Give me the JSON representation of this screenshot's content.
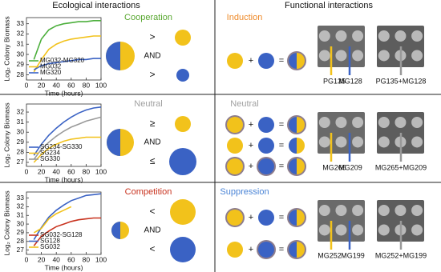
{
  "headers": [
    "Ecological interactions",
    "Functional interactions"
  ],
  "operators": {
    "plus": "+",
    "equals": "="
  },
  "chart_data": [
    {
      "type": "line",
      "y_label": "Log₂ Colony Biomass",
      "x_label": "Time (hours)",
      "x": [
        10,
        20,
        30,
        40,
        50,
        60,
        70,
        80,
        90,
        100
      ],
      "xlim": [
        0,
        100
      ],
      "xticks": [
        0,
        20,
        40,
        60,
        80,
        100
      ],
      "ylim": [
        27.5,
        33.6
      ],
      "yticks": [
        28,
        29,
        30,
        31,
        32,
        33
      ],
      "series": [
        {
          "name": "MG032-MG320",
          "color": "#4caf3c",
          "values": [
            29.5,
            31.5,
            32.4,
            32.8,
            33.0,
            33.1,
            33.2,
            33.2,
            33.3,
            33.3
          ]
        },
        {
          "name": "MG032",
          "color": "#f2c21b",
          "values": [
            28.3,
            29.5,
            30.5,
            31.0,
            31.3,
            31.5,
            31.6,
            31.7,
            31.8,
            31.8
          ]
        },
        {
          "name": "MG320",
          "color": "#3a62c4",
          "values": [
            28.5,
            28.9,
            29.1,
            29.2,
            29.3,
            29.4,
            29.5,
            29.5,
            29.6,
            29.6
          ]
        }
      ]
    },
    {
      "type": "line",
      "y_label": "Log₂ Colony Biomass",
      "x_label": "Time (hours)",
      "x": [
        10,
        20,
        30,
        40,
        50,
        60,
        70,
        80,
        90,
        100
      ],
      "xlim": [
        0,
        100
      ],
      "xticks": [
        0,
        20,
        40,
        60,
        80,
        100
      ],
      "ylim": [
        26.6,
        32.8
      ],
      "yticks": [
        27,
        28,
        29,
        30,
        31,
        32
      ],
      "series": [
        {
          "name": "SG234-SG330",
          "color": "#3a62c4",
          "values": [
            27.7,
            28.8,
            29.7,
            30.4,
            31.0,
            31.5,
            31.9,
            32.2,
            32.4,
            32.5
          ]
        },
        {
          "name": "SG234",
          "color": "#f2c21b",
          "values": [
            27.0,
            27.8,
            28.4,
            28.8,
            29.1,
            29.3,
            29.4,
            29.5,
            29.5,
            29.5
          ]
        },
        {
          "name": "SG330",
          "color": "#9a9a9a",
          "values": [
            27.3,
            28.3,
            29.0,
            29.6,
            30.1,
            30.5,
            30.8,
            31.1,
            31.3,
            31.5
          ]
        }
      ]
    },
    {
      "type": "line",
      "y_label": "Log₂ Colony Biomass",
      "x_label": "Time (hours)",
      "x": [
        10,
        20,
        30,
        40,
        50,
        60,
        70,
        80,
        90,
        100
      ],
      "xlim": [
        0,
        100
      ],
      "xticks": [
        0,
        20,
        40,
        60,
        80,
        100
      ],
      "ylim": [
        26.5,
        33.7
      ],
      "yticks": [
        27,
        28,
        29,
        30,
        31,
        32,
        33
      ],
      "series": [
        {
          "name": "SG032-SG128",
          "color": "#c8321e",
          "values": [
            27.5,
            28.6,
            29.2,
            29.7,
            30.0,
            30.3,
            30.5,
            30.6,
            30.7,
            30.7
          ]
        },
        {
          "name": "SG128",
          "color": "#3a62c4",
          "values": [
            28.2,
            29.6,
            30.8,
            31.6,
            32.2,
            32.7,
            33.0,
            33.3,
            33.4,
            33.5
          ]
        },
        {
          "name": "SG032",
          "color": "#f2c21b",
          "values": [
            29.0,
            29.5,
            30.6,
            31.2,
            31.6,
            32.0,
            null,
            null,
            null,
            null
          ]
        }
      ]
    }
  ],
  "rows": [
    {
      "ecological_title": "Cooperation",
      "ecological_color": "#5aa832",
      "symbols": [
        ">",
        "AND",
        ">"
      ],
      "functional_title": "Induction",
      "functional_color": "#ee8a2a",
      "strains": [
        "PG135",
        "MG128",
        "PG135+MG128"
      ]
    },
    {
      "ecological_title": "Neutral",
      "ecological_color": "#a0a0a0",
      "symbols": [
        "≥",
        "AND",
        "≤"
      ],
      "functional_title": "Neutral",
      "functional_color": "#a0a0a0",
      "strains": [
        "MG265",
        "MG209",
        "MG265+MG209"
      ]
    },
    {
      "ecological_title": "Competition",
      "ecological_color": "#c8321e",
      "symbols": [
        "<",
        "AND",
        "<"
      ],
      "functional_title": "Suppression",
      "functional_color": "#4a84d6",
      "strains": [
        "MG252",
        "MG199",
        "MG252+MG199"
      ]
    }
  ]
}
